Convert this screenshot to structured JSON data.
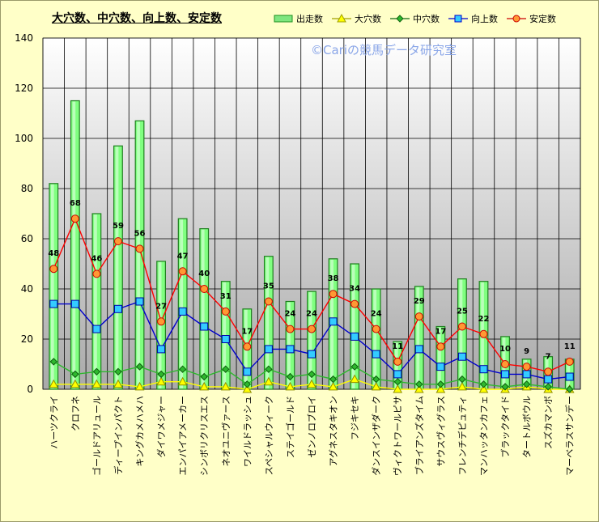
{
  "title": "大穴数、中穴数、向上数、安定数",
  "copyright": "©Cariの競馬データ研究室",
  "legend": [
    {
      "name": "出走数",
      "marker": "bar",
      "color": "#7fe67f",
      "edge": "#1f8f1f"
    },
    {
      "name": "大穴数",
      "marker": "triangle",
      "color": "#ffff00",
      "edge": "#a0a000"
    },
    {
      "name": "中穴数",
      "marker": "diamond",
      "color": "#2eb82e",
      "edge": "#116611"
    },
    {
      "name": "向上数",
      "marker": "square",
      "color": "#33ccff",
      "edge": "#0000cc"
    },
    {
      "name": "安定数",
      "marker": "circle",
      "color": "#ff9933",
      "edge": "#cc0000"
    }
  ],
  "chart_data": {
    "type": "bar",
    "ylim": [
      0,
      140
    ],
    "yticks": [
      0,
      20,
      40,
      60,
      80,
      100,
      120,
      140
    ],
    "grid": true,
    "legend_position": "top-right",
    "categories": [
      "ハーツクライ",
      "クロフネ",
      "ゴールドアリュール",
      "ディープインパクト",
      "キングカメハメハ",
      "ダイワメジャー",
      "エンパイアメーカー",
      "シンボリクリスエス",
      "ネオユニヴァース",
      "ワイルドラッシュ",
      "スペシャルウィーク",
      "ステイゴールド",
      "ゼンノロブロイ",
      "アグネスタキオン",
      "フジキセキ",
      "ダンスインザダーク",
      "ヴィクトワールピサ",
      "ブライアンズタイム",
      "サウスヴィグラス",
      "フレンチデピュティ",
      "マンハッタンカフェ",
      "ブラックタイド",
      "タートルボウル",
      "スズカマンボ",
      "マーベラスサンデー"
    ],
    "series": [
      {
        "name": "出走数",
        "type": "bar",
        "color": "#7fe67f",
        "values": [
          82,
          115,
          70,
          97,
          107,
          51,
          68,
          64,
          43,
          32,
          53,
          35,
          39,
          52,
          50,
          40,
          19,
          41,
          25,
          44,
          43,
          21,
          12,
          13,
          12
        ]
      },
      {
        "name": "大穴数",
        "type": "line",
        "color": "#ffff00",
        "values": [
          2,
          2,
          2,
          2,
          1,
          3,
          3,
          1,
          1,
          0,
          3,
          1,
          2,
          1,
          4,
          1,
          0,
          0,
          0,
          1,
          0,
          0,
          1,
          0,
          0
        ]
      },
      {
        "name": "中穴数",
        "type": "line",
        "color": "#2eb82e",
        "values": [
          11,
          6,
          7,
          7,
          9,
          6,
          8,
          5,
          8,
          2,
          8,
          5,
          6,
          4,
          9,
          4,
          3,
          2,
          2,
          4,
          2,
          1,
          2,
          1,
          0
        ]
      },
      {
        "name": "向上数",
        "type": "line",
        "color": "#0000cc",
        "values": [
          34,
          34,
          24,
          32,
          35,
          16,
          31,
          25,
          20,
          7,
          16,
          16,
          14,
          27,
          21,
          14,
          6,
          16,
          9,
          13,
          8,
          6,
          6,
          4,
          5
        ]
      },
      {
        "name": "安定数",
        "type": "line",
        "color": "#ff0000",
        "values": [
          48,
          68,
          46,
          59,
          56,
          27,
          47,
          40,
          31,
          17,
          35,
          24,
          24,
          38,
          34,
          24,
          11,
          29,
          17,
          25,
          22,
          10,
          9,
          7,
          11
        ]
      }
    ],
    "data_labels_series": "安定数"
  }
}
